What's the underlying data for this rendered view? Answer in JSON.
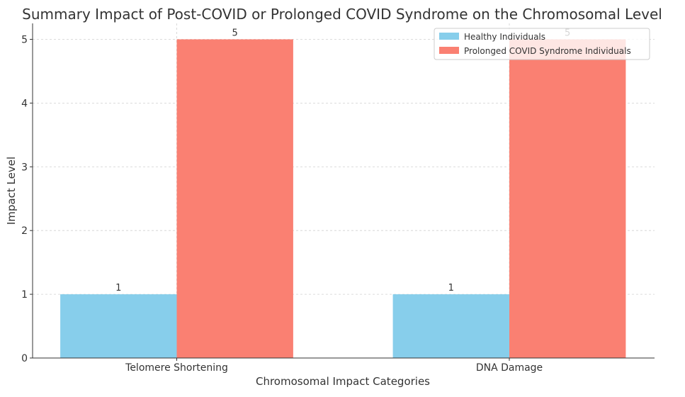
{
  "chart_data": {
    "type": "bar",
    "title": "Summary Impact of Post-COVID or Prolonged COVID Syndrome on the Chromosomal Level",
    "xlabel": "Chromosomal Impact Categories",
    "ylabel": "Impact Level",
    "categories": [
      "Telomere Shortening",
      "DNA Damage"
    ],
    "series": [
      {
        "name": "Healthy Individuals",
        "values": [
          1,
          1
        ],
        "color": "#87ceeb"
      },
      {
        "name": "Prolonged COVID Syndrome Individuals",
        "values": [
          5,
          5
        ],
        "color": "#fa8072"
      }
    ],
    "ylim": [
      0,
      5.25
    ],
    "yticks": [
      "0",
      "1",
      "2",
      "3",
      "4",
      "5"
    ],
    "data_labels": [
      "1",
      "1",
      "5",
      "5"
    ],
    "grid": true,
    "legend_position": "top-right"
  }
}
